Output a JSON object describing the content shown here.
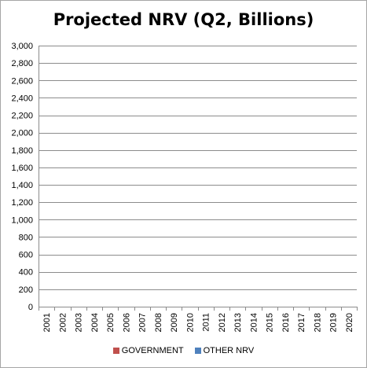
{
  "chart_data": {
    "type": "bar",
    "title": "Projected NRV (Q2, Billions)",
    "categories": [
      "2001",
      "2002",
      "2003",
      "2004",
      "2005",
      "2006",
      "2007",
      "2008",
      "2009",
      "2010",
      "2011",
      "2012",
      "2013",
      "2014",
      "2015",
      "2016",
      "2017",
      "2018",
      "2019",
      "2020"
    ],
    "series": [
      {
        "name": "GOVERNMENT",
        "color": "#c0504d",
        "values": [
          null,
          null,
          null,
          null,
          null,
          null,
          null,
          null,
          null,
          null,
          null,
          null,
          null,
          null,
          null,
          null,
          null,
          null,
          null,
          null
        ]
      },
      {
        "name": "OTHER NRV",
        "color": "#4f81bd",
        "values": [
          null,
          null,
          null,
          null,
          null,
          null,
          null,
          null,
          null,
          null,
          null,
          null,
          null,
          null,
          null,
          null,
          null,
          null,
          null,
          null
        ]
      }
    ],
    "ylim": [
      0,
      3000
    ],
    "yticks": [
      0,
      200,
      400,
      600,
      800,
      1000,
      1200,
      1400,
      1600,
      1800,
      2000,
      2200,
      2400,
      2600,
      2800,
      3000
    ],
    "ytick_labels": [
      "0",
      "200",
      "400",
      "600",
      "800",
      "1,000",
      "1,200",
      "1,400",
      "1,600",
      "1,800",
      "2,000",
      "2,200",
      "2,400",
      "2,600",
      "2,800",
      "3,000"
    ],
    "grid": true,
    "legend_position": "bottom"
  }
}
